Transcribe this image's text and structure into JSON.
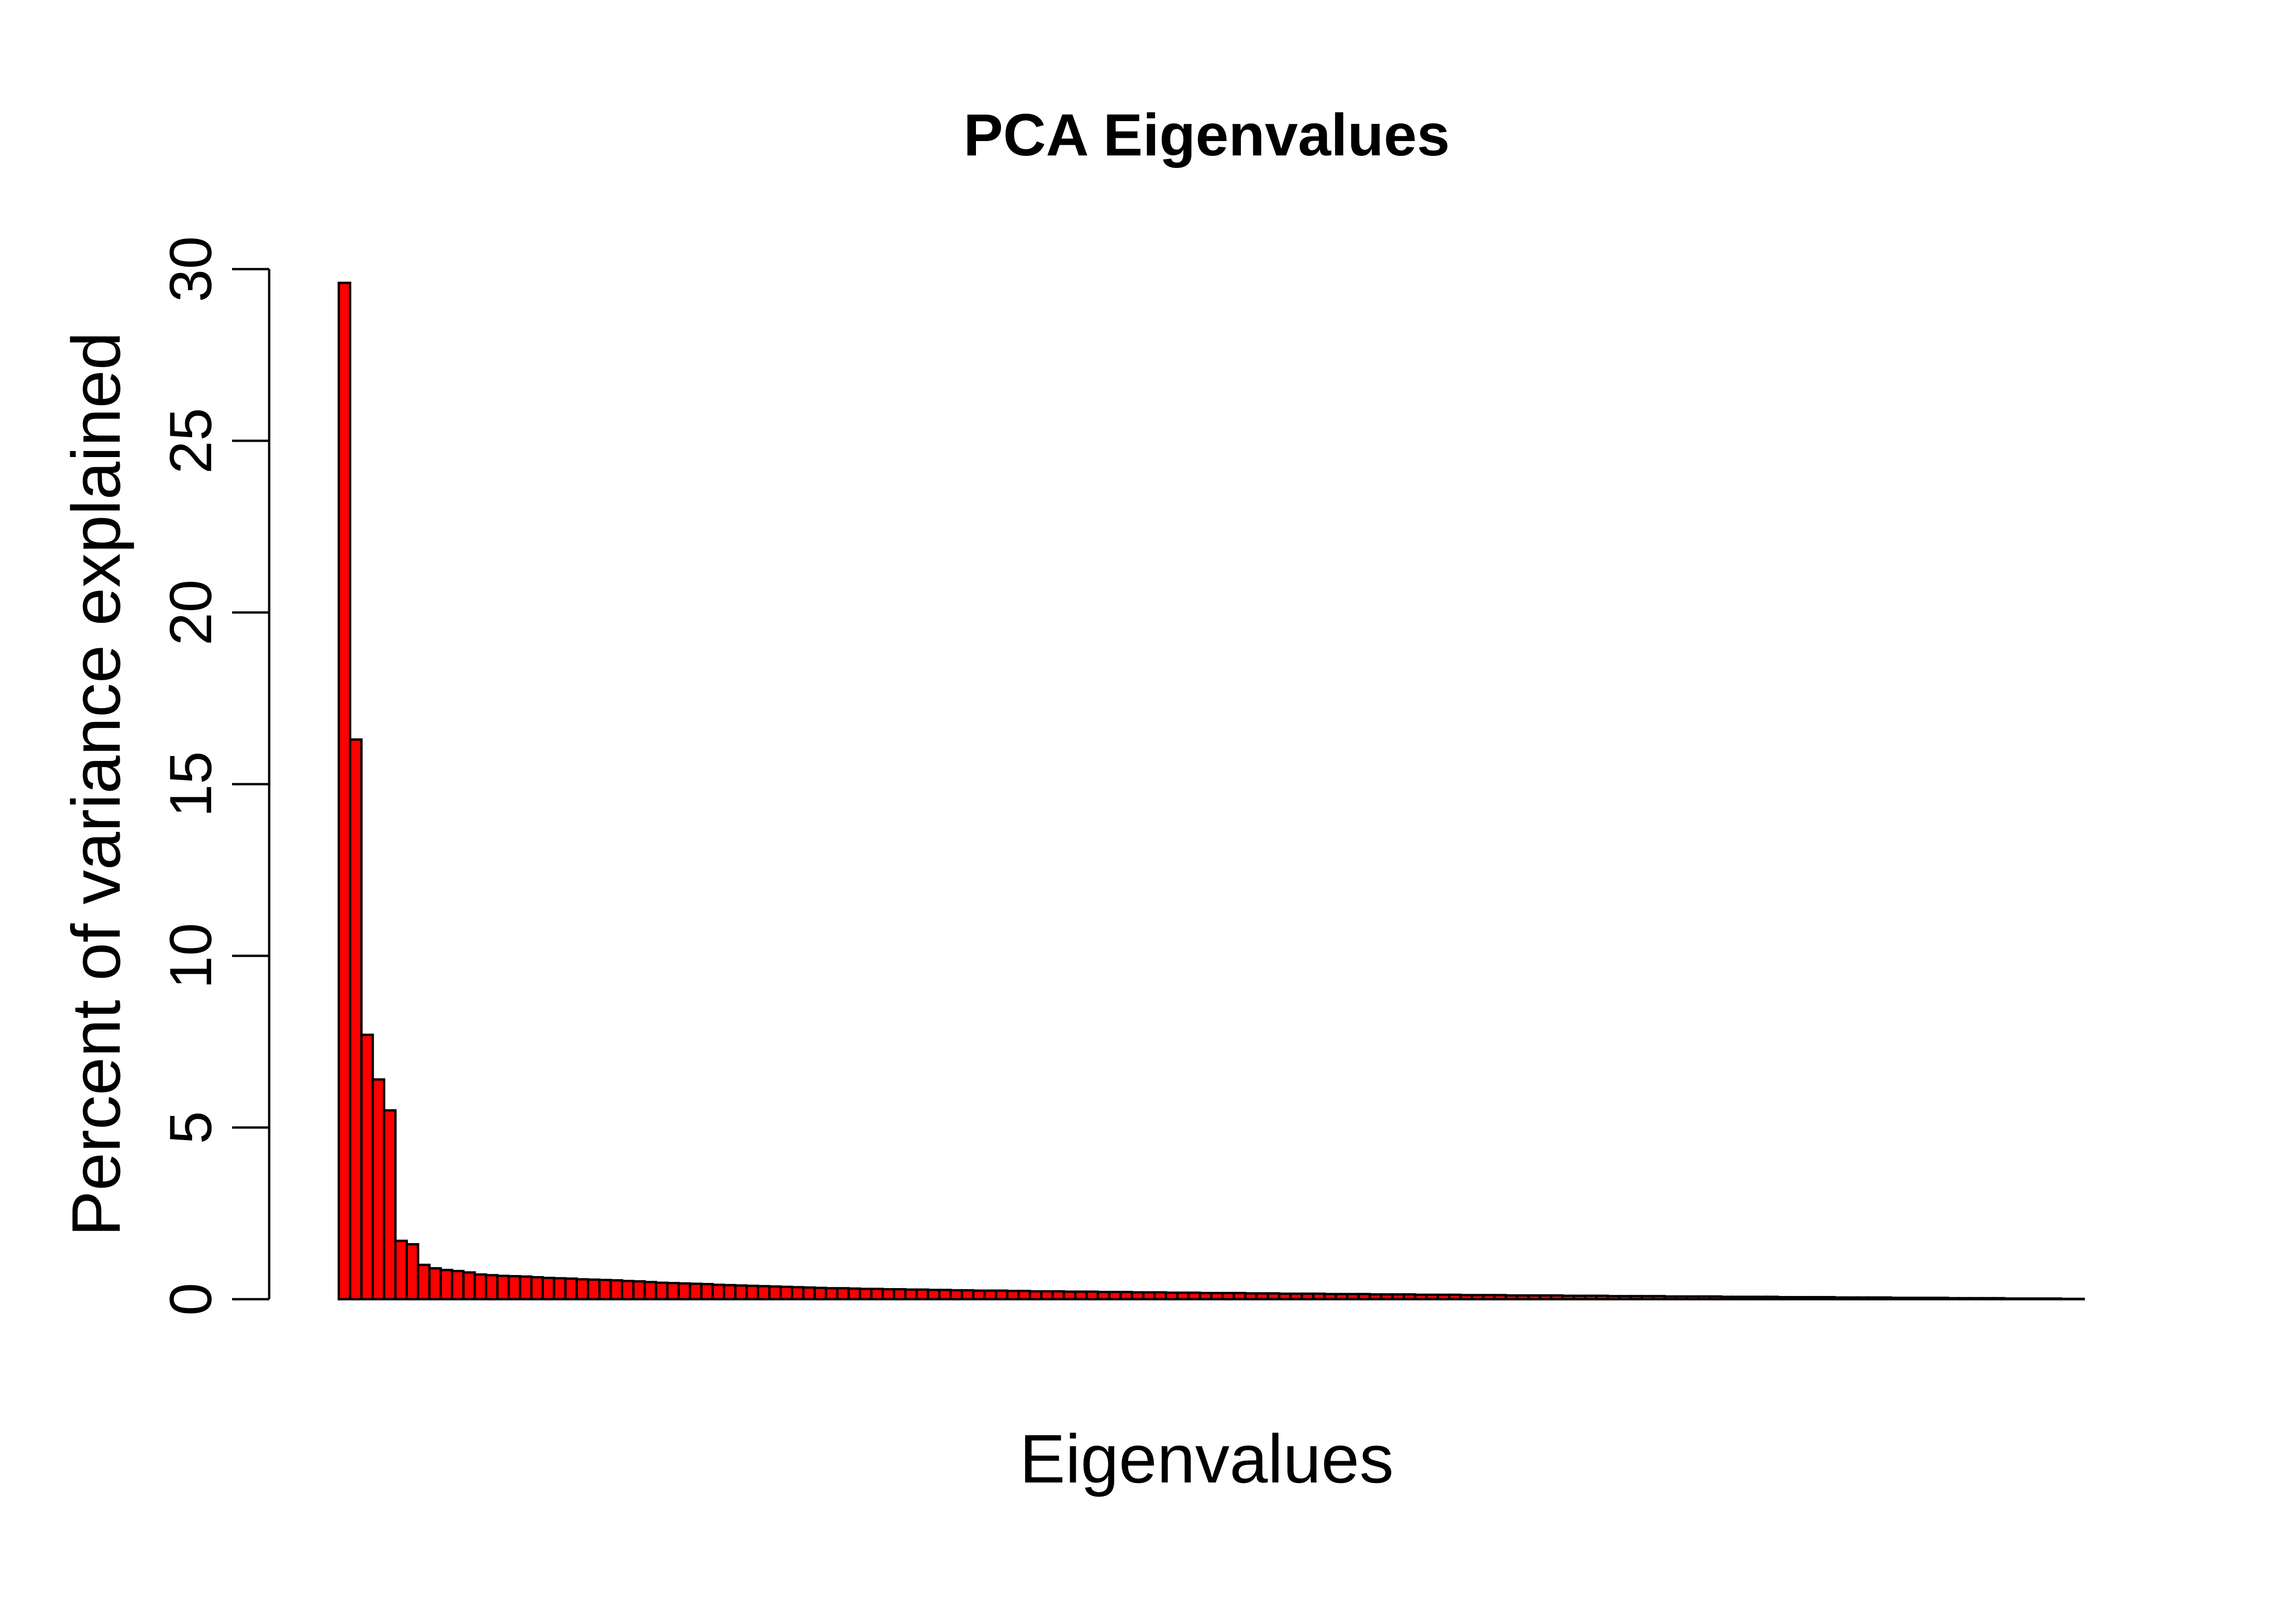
{
  "chart_data": {
    "type": "bar",
    "title": "PCA Eigenvalues",
    "xlabel": "Eigenvalues",
    "ylabel": "Percent of variance explained",
    "ylim": [
      0,
      30
    ],
    "yticks": [
      "0",
      "5",
      "10",
      "15",
      "20",
      "25",
      "30"
    ],
    "grid": false,
    "legend": "none",
    "bar_color": "#ff0000",
    "edge_color": "#000000",
    "values": [
      29.6,
      16.3,
      7.7,
      6.4,
      5.5,
      1.7,
      1.6,
      1.0,
      0.9,
      0.85,
      0.82,
      0.78,
      0.72,
      0.7,
      0.68,
      0.67,
      0.66,
      0.64,
      0.62,
      0.61,
      0.6,
      0.58,
      0.57,
      0.56,
      0.55,
      0.53,
      0.52,
      0.5,
      0.48,
      0.47,
      0.46,
      0.45,
      0.44,
      0.42,
      0.41,
      0.4,
      0.39,
      0.38,
      0.37,
      0.36,
      0.35,
      0.34,
      0.33,
      0.32,
      0.32,
      0.31,
      0.3,
      0.3,
      0.29,
      0.29,
      0.28,
      0.28,
      0.27,
      0.27,
      0.26,
      0.26,
      0.25,
      0.25,
      0.25,
      0.24,
      0.24,
      0.23,
      0.23,
      0.23,
      0.22,
      0.22,
      0.22,
      0.21,
      0.21,
      0.21,
      0.2,
      0.2,
      0.2,
      0.19,
      0.19,
      0.19,
      0.18,
      0.18,
      0.18,
      0.18,
      0.17,
      0.17,
      0.17,
      0.16,
      0.16,
      0.16,
      0.16,
      0.15,
      0.15,
      0.15,
      0.15,
      0.14,
      0.14,
      0.14,
      0.14,
      0.13,
      0.13,
      0.13,
      0.13,
      0.12,
      0.12,
      0.12,
      0.12,
      0.11,
      0.11,
      0.11,
      0.11,
      0.11,
      0.1,
      0.1,
      0.1,
      0.1,
      0.09,
      0.09,
      0.09,
      0.09,
      0.09,
      0.08,
      0.08,
      0.08,
      0.08,
      0.08,
      0.07,
      0.07,
      0.07,
      0.07,
      0.07,
      0.06,
      0.06,
      0.06,
      0.06,
      0.06,
      0.05,
      0.05,
      0.05,
      0.05,
      0.05,
      0.04,
      0.04,
      0.04,
      0.04,
      0.04,
      0.03,
      0.03,
      0.03,
      0.03,
      0.03,
      0.02,
      0.02,
      0.02,
      0.02,
      0.02,
      0.01,
      0.01
    ]
  }
}
